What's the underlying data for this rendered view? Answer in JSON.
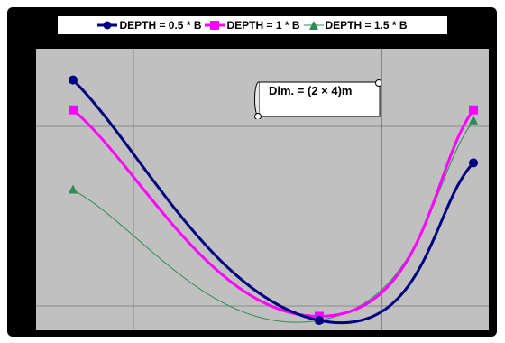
{
  "chart_data": {
    "type": "line",
    "title": "",
    "xlabel": "",
    "ylabel": "",
    "grid": true,
    "legend_position": "top",
    "background_color": "#c0c0c0",
    "x": [
      0,
      1,
      2
    ],
    "series": [
      {
        "name": "DEPTH = 0.5 * B",
        "color": "#000080",
        "marker": "circle",
        "values": [
          0.885,
          0.0,
          0.58
        ]
      },
      {
        "name": "DEPTH = 1 * B",
        "color": "#ff00ff",
        "marker": "square",
        "values": [
          0.775,
          0.015,
          0.775
        ]
      },
      {
        "name": "DEPTH = 1.5 * B",
        "color": "#2e8b57",
        "marker": "triangle",
        "values": [
          0.48,
          0.0,
          0.735
        ]
      }
    ],
    "annotation": "Dim. = (2 × 4)m"
  }
}
